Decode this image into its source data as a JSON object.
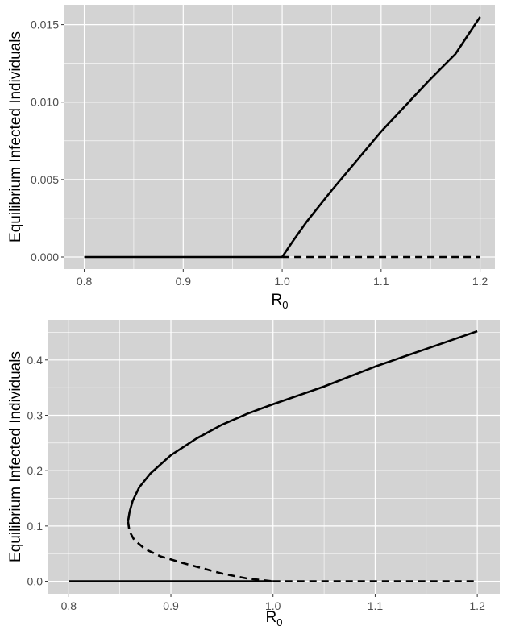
{
  "chart_data": [
    {
      "type": "line",
      "title": "",
      "xlabel": "R",
      "xlabel_subscript": "0",
      "ylabel": "Equilibrium Infected Individuals",
      "xlim": [
        0.78,
        1.215
      ],
      "ylim": [
        -0.00078,
        0.01628
      ],
      "grid": true,
      "background": "#d3d3d3",
      "grid_color": "#ffffff",
      "x_ticks": [
        0.8,
        0.9,
        1.0,
        1.1,
        1.2
      ],
      "x_tick_labels": [
        "0.8",
        "0.9",
        "1.0",
        "1.1",
        "1.2"
      ],
      "y_ticks": [
        0.0,
        0.005,
        0.01,
        0.015
      ],
      "y_tick_labels": [
        "0.000",
        "0.005",
        "0.010",
        "0.015"
      ],
      "series": [
        {
          "style": "solid",
          "color": "#000000",
          "points": [
            [
              0.8,
              0
            ],
            [
              1.0,
              0
            ]
          ]
        },
        {
          "style": "solid",
          "color": "#000000",
          "points": [
            [
              1.0,
              0
            ],
            [
              1.01,
              0.00095
            ],
            [
              1.025,
              0.0023
            ],
            [
              1.05,
              0.0043
            ],
            [
              1.075,
              0.0062
            ],
            [
              1.1,
              0.0081
            ],
            [
              1.125,
              0.0098
            ],
            [
              1.15,
              0.0115
            ],
            [
              1.175,
              0.0131
            ],
            [
              1.2,
              0.0155
            ]
          ]
        },
        {
          "style": "dashed",
          "color": "#000000",
          "points": [
            [
              1.0,
              0
            ],
            [
              1.2,
              0
            ]
          ]
        }
      ]
    },
    {
      "type": "line",
      "title": "",
      "xlabel": "R",
      "xlabel_subscript": "0",
      "ylabel": "Equilibrium Infected Individuals",
      "xlim": [
        0.78,
        1.222
      ],
      "ylim": [
        -0.0225,
        0.4725
      ],
      "grid": true,
      "background": "#d3d3d3",
      "grid_color": "#ffffff",
      "x_ticks": [
        0.8,
        0.9,
        1.0,
        1.1,
        1.2
      ],
      "x_tick_labels": [
        "0.8",
        "0.9",
        "1.0",
        "1.1",
        "1.2"
      ],
      "y_ticks": [
        0.0,
        0.1,
        0.2,
        0.3,
        0.4
      ],
      "y_tick_labels": [
        "0.0",
        "0.1",
        "0.2",
        "0.3",
        "0.4"
      ],
      "series": [
        {
          "style": "solid",
          "color": "#000000",
          "points": [
            [
              0.8,
              0
            ],
            [
              1.0,
              0
            ]
          ]
        },
        {
          "style": "solid",
          "color": "#000000",
          "points": [
            [
              0.858,
              0.108
            ],
            [
              0.8595,
              0.125
            ],
            [
              0.8625,
              0.145
            ],
            [
              0.869,
              0.17
            ],
            [
              0.88,
              0.195
            ],
            [
              0.9,
              0.228
            ],
            [
              0.925,
              0.258
            ],
            [
              0.95,
              0.283
            ],
            [
              0.975,
              0.303
            ],
            [
              1.0,
              0.32
            ],
            [
              1.05,
              0.352
            ],
            [
              1.1,
              0.388
            ],
            [
              1.15,
              0.42
            ],
            [
              1.2,
              0.452
            ]
          ]
        },
        {
          "style": "dashed",
          "color": "#000000",
          "points": [
            [
              0.858,
              0.108
            ],
            [
              0.8595,
              0.09
            ],
            [
              0.864,
              0.075
            ],
            [
              0.875,
              0.058
            ],
            [
              0.89,
              0.045
            ],
            [
              0.91,
              0.034
            ],
            [
              0.93,
              0.024
            ],
            [
              0.95,
              0.014
            ],
            [
              0.975,
              0.005
            ],
            [
              1.0,
              0
            ]
          ]
        },
        {
          "style": "dashed",
          "color": "#000000",
          "points": [
            [
              1.0,
              0
            ],
            [
              1.2,
              0
            ]
          ]
        }
      ]
    }
  ]
}
